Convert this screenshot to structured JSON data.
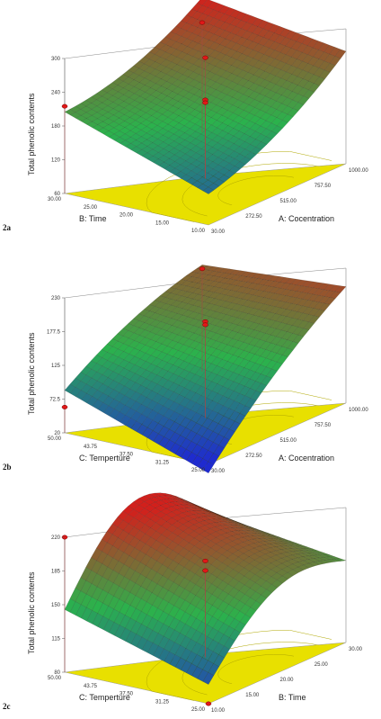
{
  "chart_data": [
    {
      "id": "2a",
      "type": "surface",
      "zlabel": "Total phenolic contents",
      "zticks": [
        "60",
        "120",
        "180",
        "240",
        "300"
      ],
      "zlim": [
        60,
        300
      ],
      "xlabel": "A: Cocentration",
      "xticks": [
        "30.00",
        "272.50",
        "515.00",
        "757.50",
        "1000.00"
      ],
      "xlim": [
        30,
        1000
      ],
      "ylabel": "B: Time",
      "yticks": [
        "10.00",
        "15.00",
        "20.00",
        "25.00",
        "30.00"
      ],
      "ylim": [
        10,
        30
      ],
      "surface_corners": {
        "x_min_y_min": 95,
        "x_max_y_min": 240,
        "x_min_y_max": 185,
        "x_max_y_max": 280
      },
      "design_points": [
        {
          "a": 515,
          "b": 20,
          "z": 275
        },
        {
          "a": 515,
          "b": 20,
          "z": 200
        },
        {
          "a": 515,
          "b": 20,
          "z": 195
        },
        {
          "a": 1000,
          "b": 30,
          "z": 255
        },
        {
          "a": 30,
          "b": 30,
          "z": 215
        }
      ]
    },
    {
      "id": "2b",
      "type": "surface",
      "zlabel": "Total phenolic contents",
      "zticks": [
        "20",
        "72.5",
        "125",
        "177.5",
        "230"
      ],
      "zlim": [
        20,
        230
      ],
      "xlabel": "A: Cocentration",
      "xticks": [
        "30.00",
        "272.50",
        "515.00",
        "757.50",
        "1000.00"
      ],
      "xlim": [
        30,
        1000
      ],
      "ylabel": "C: Temperture",
      "yticks": [
        "25.00",
        "31.25",
        "37.50",
        "43.75",
        "50.00"
      ],
      "ylim": [
        25,
        50
      ],
      "surface_corners": {
        "x_min_y_min": 20,
        "x_max_y_min": 195,
        "x_min_y_max": 100,
        "x_max_y_max": 200
      },
      "design_points": [
        {
          "a": 515,
          "c": 37.5,
          "z": 170
        },
        {
          "a": 515,
          "c": 37.5,
          "z": 165
        },
        {
          "a": 1000,
          "c": 50,
          "z": 180
        },
        {
          "a": 30,
          "c": 50,
          "z": 60
        }
      ]
    },
    {
      "id": "2c",
      "type": "surface",
      "zlabel": "Total phenolic contents",
      "zticks": [
        "80",
        "115",
        "150",
        "185",
        "220"
      ],
      "zlim": [
        80,
        220
      ],
      "xlabel": "B: Time",
      "xticks": [
        "10.00",
        "15.00",
        "20.00",
        "25.00",
        "30.00"
      ],
      "xlim": [
        10,
        30
      ],
      "ylabel": "C: Temperture",
      "yticks": [
        "25.00",
        "31.25",
        "37.50",
        "43.75",
        "50.00"
      ],
      "ylim": [
        25,
        50
      ],
      "surface_corners": {
        "x_min_y_min": 100,
        "x_max_y_min": 165,
        "x_min_y_max": 165,
        "x_max_y_max": 185
      },
      "design_points": [
        {
          "b": 20,
          "c": 37.5,
          "z": 180
        },
        {
          "b": 20,
          "c": 37.5,
          "z": 170
        },
        {
          "b": 10,
          "c": 25,
          "z": 80
        },
        {
          "b": 10,
          "c": 50,
          "z": 220
        }
      ]
    }
  ],
  "colors": {
    "floor": "#e8e000",
    "surface_low": "#1e2ad0",
    "surface_mid": "#2bb24c",
    "surface_high": "#d2201c",
    "point": "#e01818"
  }
}
